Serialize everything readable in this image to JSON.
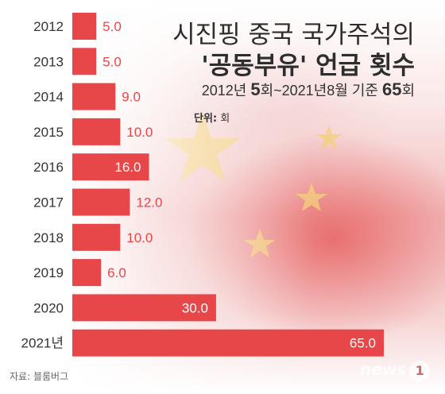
{
  "title_line1": "시진핑 중국 국가주석의",
  "title_line2": "'공동부유' 언급 횟수",
  "subtitle": {
    "part1": "2012년 ",
    "count_start": "5",
    "part2": "회~2021년8월 기준 ",
    "count_total": "65",
    "part3": "회"
  },
  "unit": {
    "label": "단위:",
    "value": " 회"
  },
  "source": "자료: 블룸버그",
  "logo": {
    "text": "news",
    "mark": "1"
  },
  "colors": {
    "bar": "#e8474a",
    "label_outside": "#e8474a",
    "label_inside": "#ffffff",
    "category": "#333333"
  },
  "icons": {
    "background_flag": "china-flag-stars"
  },
  "chart_data": {
    "type": "bar",
    "orientation": "horizontal",
    "title": "시진핑 중국 국가주석의 '공동부유' 언급 횟수",
    "categories": [
      "2012",
      "2013",
      "2014",
      "2015",
      "2016",
      "2017",
      "2018",
      "2019",
      "2020",
      "2021년"
    ],
    "values": [
      5,
      5,
      9,
      10,
      16,
      12,
      10,
      6,
      30,
      65
    ],
    "value_labels": [
      "5.0",
      "5.0",
      "9.0",
      "10.0",
      "16.0",
      "12.0",
      "10.0",
      "6.0",
      "30.0",
      "65.0"
    ],
    "xlim": [
      0,
      65
    ],
    "grid": false,
    "legend": "none"
  }
}
